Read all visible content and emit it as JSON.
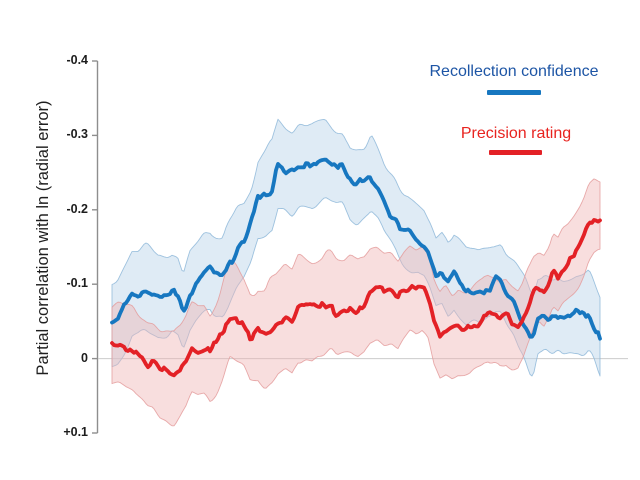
{
  "figure": {
    "background": "#ffffff"
  },
  "axis": {
    "color": "#8e8e8e",
    "tick_label_color": "#1c1c1c",
    "zero_line_color": "#cbcbcb"
  },
  "chart_data": {
    "type": "line",
    "title": "",
    "xlabel": "",
    "ylabel": "Partial correlation with ln (radial error)",
    "x_axis": {
      "visible": false,
      "range": [
        0,
        1
      ]
    },
    "y_axis": {
      "range": [
        -0.4,
        0.1
      ],
      "inverted": true,
      "ticks": [
        {
          "value": -0.4,
          "label": "-0.4"
        },
        {
          "value": -0.3,
          "label": "-0.3"
        },
        {
          "value": -0.2,
          "label": "-0.2"
        },
        {
          "value": -0.1,
          "label": "-0.1"
        },
        {
          "value": 0,
          "label": "0"
        },
        {
          "value": 0.1,
          "label": "+0.1"
        }
      ]
    },
    "zero_line": true,
    "legend_position": "top-right",
    "series": [
      {
        "name": "Recollection confidence",
        "line_color": "#1777c0",
        "label_color": "#1d55a5",
        "band_fill": "#b7d2e8",
        "band_opacity": 0.45,
        "band_edge": "#8fb8d9",
        "points": [
          [
            0.0,
            -0.047,
            0.053
          ],
          [
            0.012,
            -0.055,
            0.053
          ],
          [
            0.027,
            -0.072,
            0.054
          ],
          [
            0.041,
            -0.086,
            0.054
          ],
          [
            0.053,
            -0.084,
            0.054
          ],
          [
            0.068,
            -0.087,
            0.055
          ],
          [
            0.082,
            -0.086,
            0.055
          ],
          [
            0.094,
            -0.084,
            0.054
          ],
          [
            0.109,
            -0.089,
            0.054
          ],
          [
            0.123,
            -0.092,
            0.053
          ],
          [
            0.135,
            -0.085,
            0.053
          ],
          [
            0.146,
            -0.063,
            0.052
          ],
          [
            0.16,
            -0.09,
            0.052
          ],
          [
            0.172,
            -0.1,
            0.052
          ],
          [
            0.186,
            -0.112,
            0.052
          ],
          [
            0.201,
            -0.12,
            0.051
          ],
          [
            0.213,
            -0.112,
            0.051
          ],
          [
            0.227,
            -0.106,
            0.051
          ],
          [
            0.242,
            -0.128,
            0.051
          ],
          [
            0.256,
            -0.148,
            0.051
          ],
          [
            0.27,
            -0.157,
            0.051
          ],
          [
            0.285,
            -0.18,
            0.051
          ],
          [
            0.299,
            -0.216,
            0.051
          ],
          [
            0.314,
            -0.222,
            0.052
          ],
          [
            0.328,
            -0.232,
            0.052
          ],
          [
            0.34,
            -0.263,
            0.052
          ],
          [
            0.355,
            -0.257,
            0.052
          ],
          [
            0.369,
            -0.255,
            0.052
          ],
          [
            0.381,
            -0.26,
            0.053
          ],
          [
            0.396,
            -0.263,
            0.053
          ],
          [
            0.41,
            -0.262,
            0.053
          ],
          [
            0.422,
            -0.266,
            0.052
          ],
          [
            0.437,
            -0.269,
            0.052
          ],
          [
            0.449,
            -0.261,
            0.051
          ],
          [
            0.461,
            -0.256,
            0.051
          ],
          [
            0.473,
            -0.258,
            0.05
          ],
          [
            0.488,
            -0.239,
            0.049
          ],
          [
            0.502,
            -0.236,
            0.049
          ],
          [
            0.516,
            -0.24,
            0.048
          ],
          [
            0.531,
            -0.247,
            0.048
          ],
          [
            0.545,
            -0.228,
            0.047
          ],
          [
            0.559,
            -0.206,
            0.047
          ],
          [
            0.574,
            -0.194,
            0.046
          ],
          [
            0.586,
            -0.183,
            0.046
          ],
          [
            0.6,
            -0.172,
            0.045
          ],
          [
            0.615,
            -0.165,
            0.045
          ],
          [
            0.627,
            -0.159,
            0.044
          ],
          [
            0.639,
            -0.15,
            0.044
          ],
          [
            0.652,
            -0.131,
            0.044
          ],
          [
            0.664,
            -0.11,
            0.044
          ],
          [
            0.676,
            -0.117,
            0.044
          ],
          [
            0.689,
            -0.104,
            0.044
          ],
          [
            0.701,
            -0.116,
            0.044
          ],
          [
            0.713,
            -0.105,
            0.045
          ],
          [
            0.726,
            -0.094,
            0.045
          ],
          [
            0.738,
            -0.092,
            0.045
          ],
          [
            0.75,
            -0.09,
            0.046
          ],
          [
            0.762,
            -0.093,
            0.046
          ],
          [
            0.775,
            -0.096,
            0.047
          ],
          [
            0.787,
            -0.104,
            0.047
          ],
          [
            0.797,
            -0.106,
            0.048
          ],
          [
            0.809,
            -0.089,
            0.049
          ],
          [
            0.822,
            -0.078,
            0.05
          ],
          [
            0.834,
            -0.06,
            0.051
          ],
          [
            0.846,
            -0.047,
            0.052
          ],
          [
            0.857,
            -0.029,
            0.053
          ],
          [
            0.863,
            -0.024,
            0.053
          ],
          [
            0.873,
            -0.052,
            0.054
          ],
          [
            0.887,
            -0.062,
            0.054
          ],
          [
            0.9,
            -0.058,
            0.054
          ],
          [
            0.912,
            -0.061,
            0.055
          ],
          [
            0.924,
            -0.053,
            0.055
          ],
          [
            0.939,
            -0.056,
            0.055
          ],
          [
            0.953,
            -0.058,
            0.055
          ],
          [
            0.965,
            -0.055,
            0.056
          ],
          [
            0.977,
            -0.06,
            0.056
          ],
          [
            0.988,
            -0.046,
            0.056
          ],
          [
            1.0,
            -0.031,
            0.057
          ]
        ]
      },
      {
        "name": "Precision rating",
        "line_color": "#e32126",
        "label_color": "#e8231f",
        "band_fill": "#f0b6b6",
        "band_opacity": 0.45,
        "band_edge": "#e49c9c",
        "points": [
          [
            0.0,
            -0.015,
            0.05
          ],
          [
            0.014,
            -0.017,
            0.052
          ],
          [
            0.029,
            -0.013,
            0.054
          ],
          [
            0.043,
            -0.011,
            0.056
          ],
          [
            0.057,
            -0.002,
            0.058
          ],
          [
            0.072,
            0.007,
            0.059
          ],
          [
            0.084,
            0.005,
            0.06
          ],
          [
            0.098,
            0.014,
            0.061
          ],
          [
            0.113,
            0.018,
            0.062
          ],
          [
            0.127,
            0.02,
            0.062
          ],
          [
            0.139,
            0.016,
            0.062
          ],
          [
            0.152,
            0.008,
            0.062
          ],
          [
            0.164,
            -0.008,
            0.062
          ],
          [
            0.176,
            -0.007,
            0.062
          ],
          [
            0.189,
            -0.013,
            0.062
          ],
          [
            0.201,
            -0.007,
            0.062
          ],
          [
            0.215,
            -0.02,
            0.063
          ],
          [
            0.227,
            -0.037,
            0.063
          ],
          [
            0.242,
            -0.057,
            0.063
          ],
          [
            0.256,
            -0.053,
            0.063
          ],
          [
            0.27,
            -0.044,
            0.064
          ],
          [
            0.283,
            -0.03,
            0.064
          ],
          [
            0.299,
            -0.037,
            0.064
          ],
          [
            0.314,
            -0.028,
            0.064
          ],
          [
            0.328,
            -0.037,
            0.065
          ],
          [
            0.34,
            -0.048,
            0.065
          ],
          [
            0.355,
            -0.055,
            0.065
          ],
          [
            0.369,
            -0.051,
            0.066
          ],
          [
            0.381,
            -0.067,
            0.066
          ],
          [
            0.396,
            -0.071,
            0.067
          ],
          [
            0.41,
            -0.068,
            0.067
          ],
          [
            0.422,
            -0.071,
            0.066
          ],
          [
            0.437,
            -0.073,
            0.066
          ],
          [
            0.449,
            -0.07,
            0.065
          ],
          [
            0.461,
            -0.059,
            0.065
          ],
          [
            0.475,
            -0.063,
            0.064
          ],
          [
            0.49,
            -0.066,
            0.064
          ],
          [
            0.504,
            -0.063,
            0.063
          ],
          [
            0.516,
            -0.07,
            0.063
          ],
          [
            0.529,
            -0.086,
            0.062
          ],
          [
            0.543,
            -0.094,
            0.062
          ],
          [
            0.557,
            -0.088,
            0.061
          ],
          [
            0.572,
            -0.09,
            0.061
          ],
          [
            0.586,
            -0.079,
            0.06
          ],
          [
            0.598,
            -0.09,
            0.06
          ],
          [
            0.611,
            -0.098,
            0.059
          ],
          [
            0.623,
            -0.094,
            0.059
          ],
          [
            0.635,
            -0.097,
            0.058
          ],
          [
            0.648,
            -0.085,
            0.058
          ],
          [
            0.66,
            -0.052,
            0.057
          ],
          [
            0.672,
            -0.036,
            0.057
          ],
          [
            0.684,
            -0.042,
            0.056
          ],
          [
            0.697,
            -0.038,
            0.056
          ],
          [
            0.709,
            -0.042,
            0.056
          ],
          [
            0.721,
            -0.04,
            0.055
          ],
          [
            0.734,
            -0.041,
            0.055
          ],
          [
            0.746,
            -0.046,
            0.055
          ],
          [
            0.758,
            -0.05,
            0.054
          ],
          [
            0.77,
            -0.059,
            0.054
          ],
          [
            0.783,
            -0.058,
            0.054
          ],
          [
            0.795,
            -0.054,
            0.054
          ],
          [
            0.807,
            -0.057,
            0.053
          ],
          [
            0.82,
            -0.046,
            0.053
          ],
          [
            0.832,
            -0.041,
            0.053
          ],
          [
            0.842,
            -0.049,
            0.053
          ],
          [
            0.852,
            -0.069,
            0.052
          ],
          [
            0.863,
            -0.088,
            0.052
          ],
          [
            0.875,
            -0.094,
            0.052
          ],
          [
            0.885,
            -0.09,
            0.052
          ],
          [
            0.896,
            -0.103,
            0.051
          ],
          [
            0.904,
            -0.117,
            0.051
          ],
          [
            0.914,
            -0.112,
            0.051
          ],
          [
            0.924,
            -0.125,
            0.051
          ],
          [
            0.934,
            -0.131,
            0.05
          ],
          [
            0.945,
            -0.139,
            0.05
          ],
          [
            0.957,
            -0.149,
            0.05
          ],
          [
            0.967,
            -0.163,
            0.05
          ],
          [
            0.977,
            -0.18,
            0.05
          ],
          [
            0.988,
            -0.188,
            0.05
          ],
          [
            1.0,
            -0.186,
            0.05
          ]
        ]
      }
    ]
  }
}
